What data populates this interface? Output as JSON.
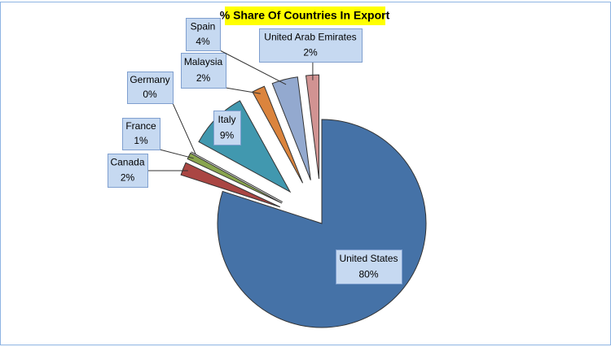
{
  "chart_data": {
    "type": "pie",
    "title": "% Share Of Countries In Export",
    "categories": [
      "United States",
      "Canada",
      "France",
      "Germany",
      "Italy",
      "Malaysia",
      "Spain",
      "United Arab Emirates"
    ],
    "values": [
      80,
      2,
      1,
      0,
      9,
      2,
      4,
      2
    ],
    "value_labels": [
      "80%",
      "2%",
      "1%",
      "0%",
      "9%",
      "2%",
      "4%",
      "2%"
    ],
    "colors": [
      "#4572a7",
      "#aa4643",
      "#89a54e",
      "#71588f",
      "#4198af",
      "#db843d",
      "#93a9cf",
      "#d19392"
    ]
  }
}
